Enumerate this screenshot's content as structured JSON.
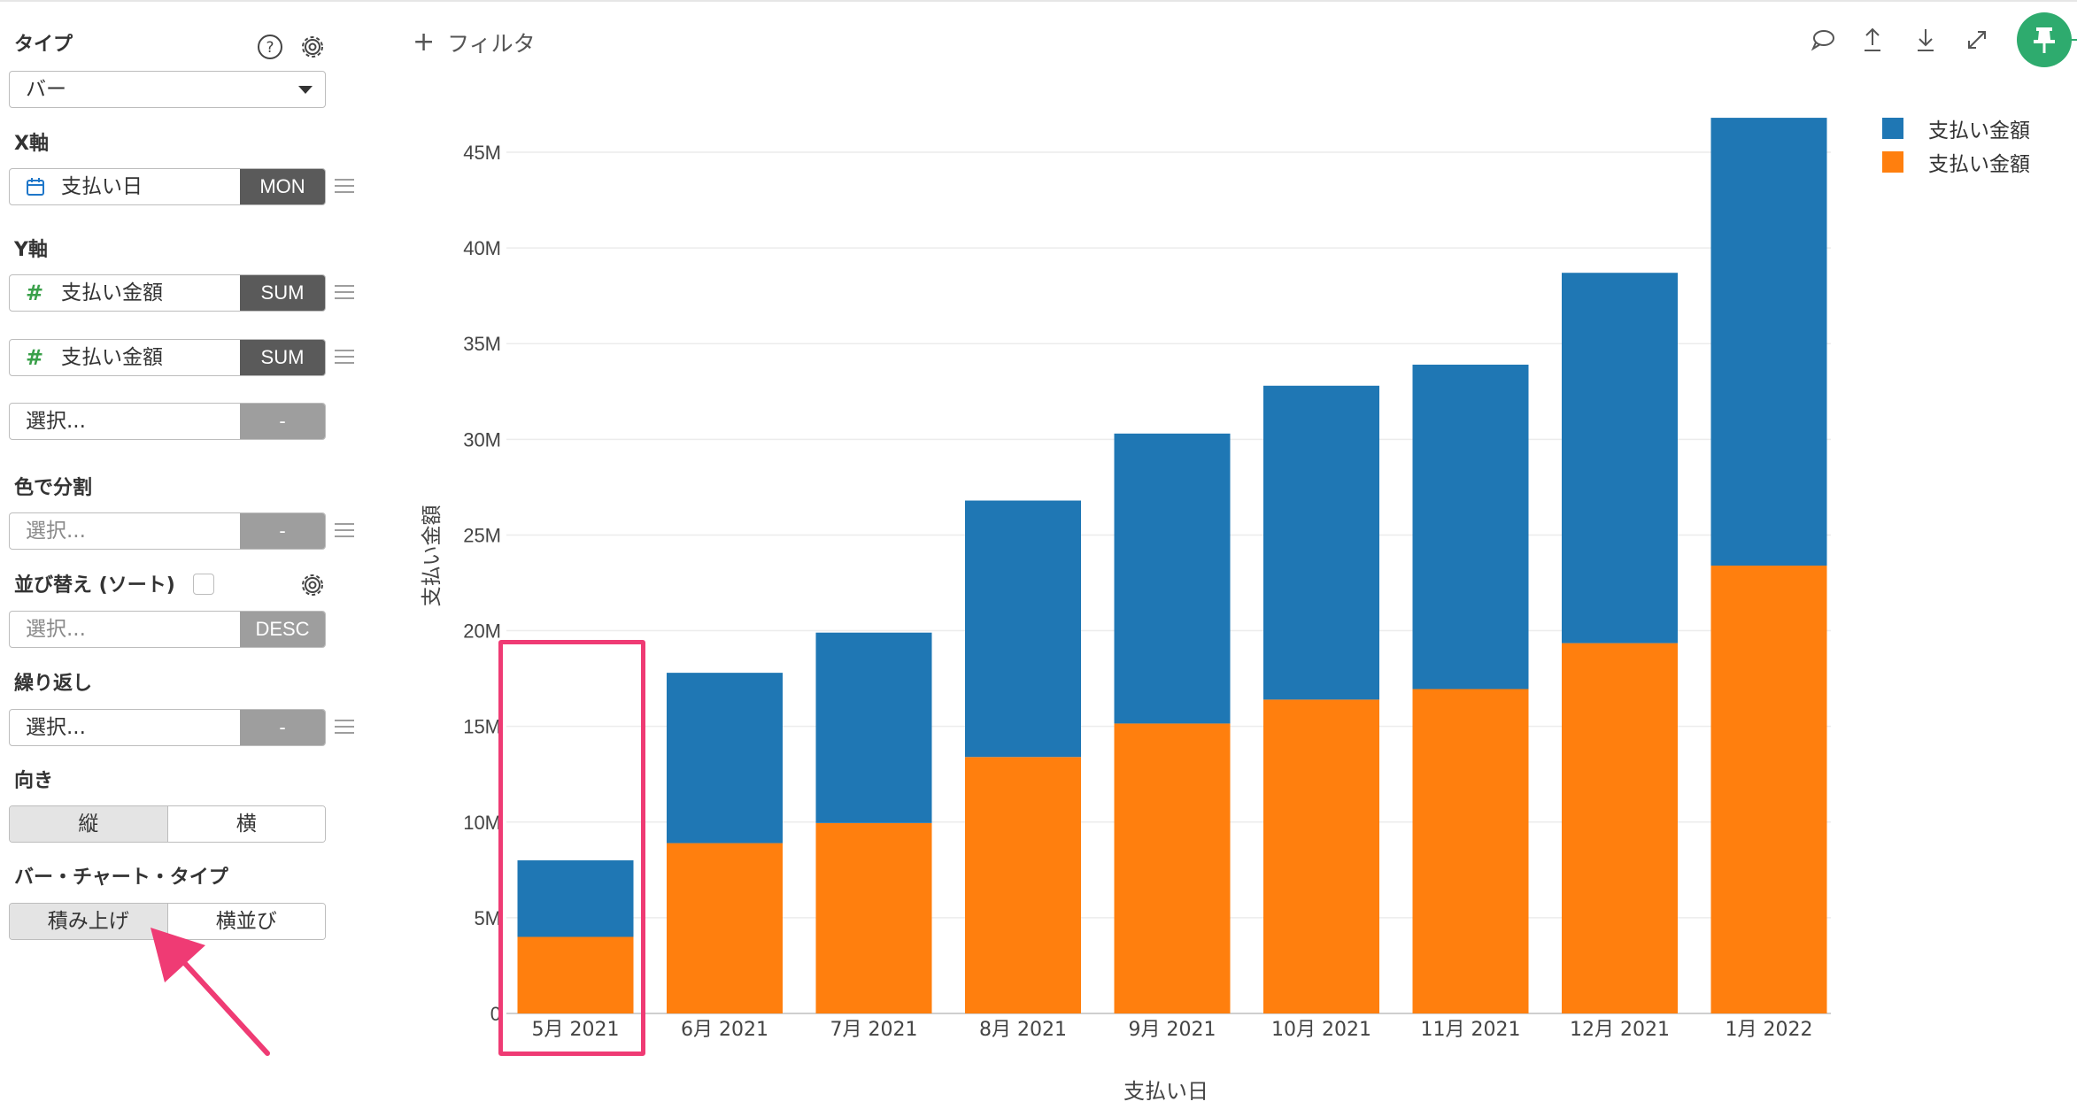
{
  "panel": {
    "type_label": "タイプ",
    "chart_type_value": "バー",
    "x_axis_label": "X軸",
    "x_field": {
      "name": "支払い日",
      "agg": "MON"
    },
    "y_axis_label": "Y軸",
    "y_fields": [
      {
        "name": "支払い金額",
        "agg": "SUM"
      },
      {
        "name": "支払い金額",
        "agg": "SUM"
      },
      {
        "name": "選択...",
        "agg": "-"
      }
    ],
    "color_split_label": "色で分割",
    "color_split": {
      "placeholder": "選択...",
      "agg": "-"
    },
    "sort_label": "並び替え (ソート)",
    "sort": {
      "placeholder": "選択...",
      "order": "DESC"
    },
    "repeat_label": "繰り返し",
    "repeat": {
      "value": "選択...",
      "agg": "-"
    },
    "orientation_label": "向き",
    "orientation_options": [
      "縦",
      "横"
    ],
    "orientation_selected": "縦",
    "bar_type_label": "バー・チャート・タイプ",
    "bar_type_options": [
      "積み上げ",
      "横並び"
    ],
    "bar_type_selected": "積み上げ"
  },
  "toolbar": {
    "filter_label": "フィルタ",
    "icons": [
      "comment-icon",
      "export-icon",
      "download-icon",
      "expand-icon",
      "pin-icon"
    ]
  },
  "colors": {
    "series_blue": "#1f77b4",
    "series_orange": "#ff7f0e",
    "pin_green": "#2eab6e",
    "highlight_pink": "#ef3b74"
  },
  "chart_data": {
    "type": "bar",
    "stacked": true,
    "categories": [
      "5月 2021",
      "6月 2021",
      "7月 2021",
      "8月 2021",
      "9月 2021",
      "10月 2021",
      "11月 2021",
      "12月 2021",
      "1月 2022"
    ],
    "series": [
      {
        "name": "支払い金額",
        "color": "#ff7f0e",
        "values": [
          4.0,
          8.9,
          9.95,
          13.4,
          15.15,
          16.4,
          16.95,
          19.35,
          23.4
        ]
      },
      {
        "name": "支払い金額",
        "color": "#1f77b4",
        "values": [
          4.0,
          8.9,
          9.95,
          13.4,
          15.15,
          16.4,
          16.95,
          19.35,
          23.4
        ]
      }
    ],
    "xlabel": "支払い日",
    "ylabel": "支払い金額",
    "ylim": [
      0,
      48
    ],
    "yticks": [
      0,
      5,
      10,
      15,
      20,
      25,
      30,
      35,
      40,
      45
    ],
    "ytick_labels": [
      "0",
      "5M",
      "10M",
      "15M",
      "20M",
      "25M",
      "30M",
      "35M",
      "40M",
      "45M"
    ],
    "grid": true,
    "legend_position": "top-right"
  }
}
